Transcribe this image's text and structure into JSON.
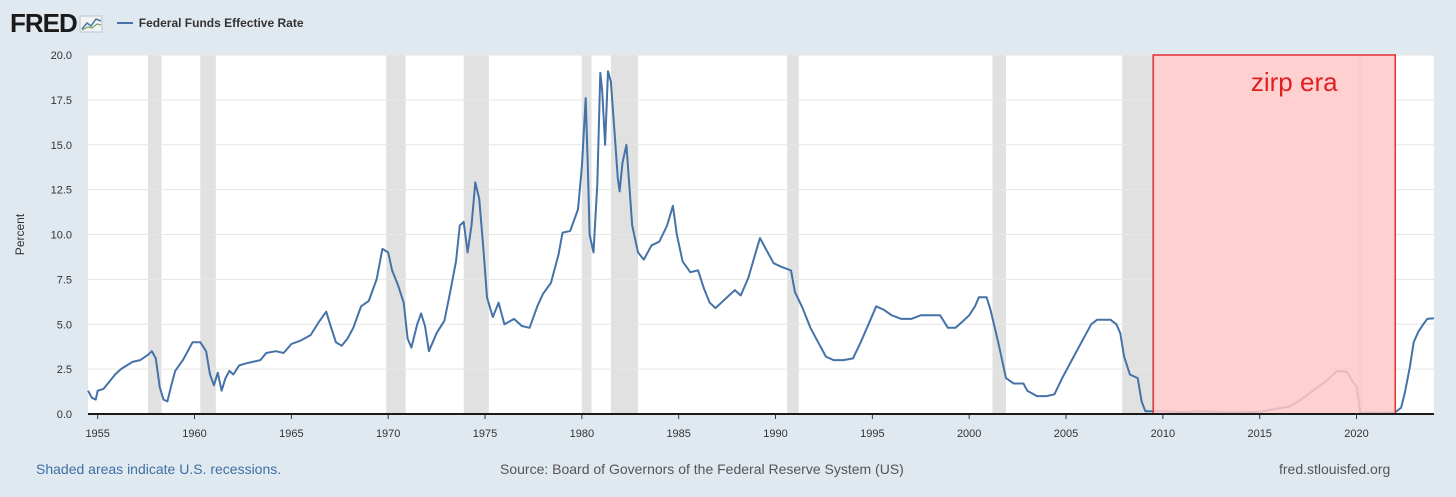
{
  "header": {
    "logo_text": "FRED",
    "legend_label": "Federal Funds Effective Rate"
  },
  "footer": {
    "note": "Shaded areas indicate U.S. recessions.",
    "source": "Source: Board of Governors of the Federal Reserve System (US)",
    "site": "fred.stlouisfed.org"
  },
  "colors": {
    "line": "#4572a7",
    "recession": "#e1e1e1",
    "annotation_fill": "#ffc8c8",
    "annotation_border": "#e03030",
    "annotation_text": "#e02020",
    "page_bg": "#e1e9f0",
    "plot_bg": "#ffffff"
  },
  "chart_data": {
    "type": "line",
    "ylabel": "Percent",
    "xlabel": "",
    "xlim": [
      1954.5,
      2024.0
    ],
    "ylim": [
      0,
      20
    ],
    "xticks": [
      "1955",
      "1960",
      "1965",
      "1970",
      "1975",
      "1980",
      "1985",
      "1990",
      "1995",
      "2000",
      "2005",
      "2010",
      "2015",
      "2020"
    ],
    "yticks": [
      "0.0",
      "2.5",
      "5.0",
      "7.5",
      "10.0",
      "12.5",
      "15.0",
      "17.5",
      "20.0"
    ],
    "grid": true,
    "legend_position": "top-left",
    "recessions": [
      [
        1957.6,
        1958.3
      ],
      [
        1960.3,
        1961.1
      ],
      [
        1969.9,
        1970.9
      ],
      [
        1973.9,
        1975.2
      ],
      [
        1980.0,
        1980.5
      ],
      [
        1981.5,
        1982.9
      ],
      [
        1990.6,
        1991.2
      ],
      [
        2001.2,
        2001.9
      ],
      [
        2007.9,
        2009.5
      ],
      [
        2020.1,
        2020.3
      ]
    ],
    "annotation": {
      "label": "zirp era",
      "x_start": 2009.5,
      "x_end": 2022.0
    },
    "series": [
      {
        "name": "Federal Funds Effective Rate",
        "points": [
          [
            1954.5,
            1.3
          ],
          [
            1954.7,
            0.9
          ],
          [
            1954.9,
            0.8
          ],
          [
            1955.0,
            1.3
          ],
          [
            1955.3,
            1.4
          ],
          [
            1955.6,
            1.8
          ],
          [
            1955.9,
            2.2
          ],
          [
            1956.2,
            2.5
          ],
          [
            1956.5,
            2.7
          ],
          [
            1956.8,
            2.9
          ],
          [
            1957.2,
            3.0
          ],
          [
            1957.6,
            3.3
          ],
          [
            1957.8,
            3.5
          ],
          [
            1958.0,
            3.1
          ],
          [
            1958.2,
            1.5
          ],
          [
            1958.4,
            0.8
          ],
          [
            1958.6,
            0.7
          ],
          [
            1958.8,
            1.6
          ],
          [
            1959.0,
            2.4
          ],
          [
            1959.4,
            3.0
          ],
          [
            1959.7,
            3.6
          ],
          [
            1959.9,
            4.0
          ],
          [
            1960.3,
            4.0
          ],
          [
            1960.6,
            3.5
          ],
          [
            1960.8,
            2.2
          ],
          [
            1961.0,
            1.6
          ],
          [
            1961.2,
            2.3
          ],
          [
            1961.4,
            1.3
          ],
          [
            1961.6,
            2.0
          ],
          [
            1961.8,
            2.4
          ],
          [
            1962.0,
            2.2
          ],
          [
            1962.3,
            2.7
          ],
          [
            1962.6,
            2.8
          ],
          [
            1963.0,
            2.9
          ],
          [
            1963.4,
            3.0
          ],
          [
            1963.7,
            3.4
          ],
          [
            1964.2,
            3.5
          ],
          [
            1964.6,
            3.4
          ],
          [
            1965.0,
            3.9
          ],
          [
            1965.5,
            4.1
          ],
          [
            1966.0,
            4.4
          ],
          [
            1966.4,
            5.1
          ],
          [
            1966.8,
            5.7
          ],
          [
            1967.0,
            5.0
          ],
          [
            1967.3,
            4.0
          ],
          [
            1967.6,
            3.8
          ],
          [
            1967.9,
            4.2
          ],
          [
            1968.2,
            4.8
          ],
          [
            1968.6,
            6.0
          ],
          [
            1969.0,
            6.3
          ],
          [
            1969.4,
            7.5
          ],
          [
            1969.7,
            9.2
          ],
          [
            1970.0,
            9.0
          ],
          [
            1970.2,
            8.0
          ],
          [
            1970.5,
            7.2
          ],
          [
            1970.8,
            6.2
          ],
          [
            1971.0,
            4.2
          ],
          [
            1971.2,
            3.7
          ],
          [
            1971.5,
            5.0
          ],
          [
            1971.7,
            5.6
          ],
          [
            1971.9,
            4.9
          ],
          [
            1972.1,
            3.5
          ],
          [
            1972.5,
            4.5
          ],
          [
            1972.9,
            5.2
          ],
          [
            1973.2,
            6.8
          ],
          [
            1973.5,
            8.5
          ],
          [
            1973.7,
            10.5
          ],
          [
            1973.9,
            10.7
          ],
          [
            1974.1,
            9.0
          ],
          [
            1974.3,
            10.5
          ],
          [
            1974.5,
            12.9
          ],
          [
            1974.7,
            12.0
          ],
          [
            1974.9,
            9.4
          ],
          [
            1975.1,
            6.5
          ],
          [
            1975.4,
            5.4
          ],
          [
            1975.7,
            6.2
          ],
          [
            1976.0,
            5.0
          ],
          [
            1976.5,
            5.3
          ],
          [
            1976.9,
            4.9
          ],
          [
            1977.3,
            4.8
          ],
          [
            1977.7,
            6.0
          ],
          [
            1978.0,
            6.7
          ],
          [
            1978.4,
            7.3
          ],
          [
            1978.8,
            8.9
          ],
          [
            1979.0,
            10.1
          ],
          [
            1979.4,
            10.2
          ],
          [
            1979.8,
            11.4
          ],
          [
            1980.0,
            13.8
          ],
          [
            1980.2,
            17.6
          ],
          [
            1980.3,
            14.0
          ],
          [
            1980.4,
            10.0
          ],
          [
            1980.6,
            9.0
          ],
          [
            1980.8,
            12.8
          ],
          [
            1980.95,
            19.0
          ],
          [
            1981.05,
            18.0
          ],
          [
            1981.2,
            15.0
          ],
          [
            1981.35,
            19.1
          ],
          [
            1981.5,
            18.5
          ],
          [
            1981.7,
            15.5
          ],
          [
            1981.85,
            13.2
          ],
          [
            1981.95,
            12.4
          ],
          [
            1982.1,
            14.0
          ],
          [
            1982.3,
            15.0
          ],
          [
            1982.6,
            10.5
          ],
          [
            1982.9,
            9.0
          ],
          [
            1983.2,
            8.6
          ],
          [
            1983.6,
            9.4
          ],
          [
            1984.0,
            9.6
          ],
          [
            1984.4,
            10.5
          ],
          [
            1984.7,
            11.6
          ],
          [
            1984.9,
            10.0
          ],
          [
            1985.2,
            8.5
          ],
          [
            1985.6,
            7.9
          ],
          [
            1986.0,
            8.0
          ],
          [
            1986.3,
            7.0
          ],
          [
            1986.6,
            6.2
          ],
          [
            1986.9,
            5.9
          ],
          [
            1987.2,
            6.2
          ],
          [
            1987.6,
            6.6
          ],
          [
            1987.9,
            6.9
          ],
          [
            1988.2,
            6.6
          ],
          [
            1988.6,
            7.6
          ],
          [
            1989.0,
            9.1
          ],
          [
            1989.2,
            9.8
          ],
          [
            1989.5,
            9.2
          ],
          [
            1989.9,
            8.4
          ],
          [
            1990.3,
            8.2
          ],
          [
            1990.8,
            8.0
          ],
          [
            1991.0,
            6.8
          ],
          [
            1991.4,
            5.9
          ],
          [
            1991.8,
            4.8
          ],
          [
            1992.2,
            4.0
          ],
          [
            1992.6,
            3.2
          ],
          [
            1993.0,
            3.0
          ],
          [
            1993.5,
            3.0
          ],
          [
            1994.0,
            3.1
          ],
          [
            1994.4,
            4.0
          ],
          [
            1994.8,
            5.0
          ],
          [
            1995.2,
            6.0
          ],
          [
            1995.6,
            5.8
          ],
          [
            1996.0,
            5.5
          ],
          [
            1996.5,
            5.3
          ],
          [
            1997.0,
            5.3
          ],
          [
            1997.5,
            5.5
          ],
          [
            1998.0,
            5.5
          ],
          [
            1998.5,
            5.5
          ],
          [
            1998.9,
            4.8
          ],
          [
            1999.3,
            4.8
          ],
          [
            1999.7,
            5.2
          ],
          [
            2000.0,
            5.5
          ],
          [
            2000.3,
            6.0
          ],
          [
            2000.5,
            6.5
          ],
          [
            2000.9,
            6.5
          ],
          [
            2001.1,
            5.8
          ],
          [
            2001.5,
            4.0
          ],
          [
            2001.9,
            2.0
          ],
          [
            2002.3,
            1.7
          ],
          [
            2002.8,
            1.7
          ],
          [
            2003.0,
            1.3
          ],
          [
            2003.5,
            1.0
          ],
          [
            2004.0,
            1.0
          ],
          [
            2004.4,
            1.1
          ],
          [
            2004.8,
            2.0
          ],
          [
            2005.3,
            3.0
          ],
          [
            2005.8,
            4.0
          ],
          [
            2006.3,
            5.0
          ],
          [
            2006.6,
            5.25
          ],
          [
            2007.3,
            5.25
          ],
          [
            2007.6,
            5.0
          ],
          [
            2007.8,
            4.5
          ],
          [
            2008.0,
            3.2
          ],
          [
            2008.3,
            2.2
          ],
          [
            2008.7,
            2.0
          ],
          [
            2008.9,
            0.7
          ],
          [
            2009.1,
            0.15
          ],
          [
            2010.0,
            0.15
          ],
          [
            2011.0,
            0.1
          ],
          [
            2012.0,
            0.15
          ],
          [
            2013.0,
            0.1
          ],
          [
            2014.0,
            0.1
          ],
          [
            2015.0,
            0.12
          ],
          [
            2015.9,
            0.3
          ],
          [
            2016.5,
            0.4
          ],
          [
            2017.0,
            0.7
          ],
          [
            2017.5,
            1.1
          ],
          [
            2018.0,
            1.5
          ],
          [
            2018.5,
            1.9
          ],
          [
            2019.0,
            2.4
          ],
          [
            2019.5,
            2.35
          ],
          [
            2019.8,
            1.8
          ],
          [
            2020.0,
            1.55
          ],
          [
            2020.2,
            0.05
          ],
          [
            2020.5,
            0.09
          ],
          [
            2021.0,
            0.08
          ],
          [
            2022.0,
            0.1
          ],
          [
            2022.3,
            0.35
          ],
          [
            2022.5,
            1.2
          ],
          [
            2022.75,
            2.6
          ],
          [
            2022.95,
            4.0
          ],
          [
            2023.2,
            4.6
          ],
          [
            2023.45,
            5.0
          ],
          [
            2023.65,
            5.3
          ],
          [
            2024.0,
            5.33
          ]
        ]
      }
    ]
  }
}
